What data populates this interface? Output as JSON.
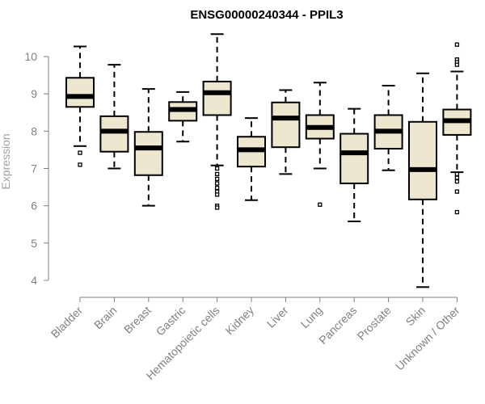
{
  "chart_data": {
    "type": "box",
    "title": "ENSG00000240344 - PPIL3",
    "xlabel": "",
    "ylabel": "Expression",
    "ylim": [
      3.8,
      10.6
    ],
    "yticks": [
      4,
      5,
      6,
      7,
      8,
      9,
      10
    ],
    "grid": false,
    "colors": {
      "box_fill": "#ede7cf",
      "box_stroke": "#000000",
      "axis": "#808080"
    },
    "categories": [
      "Bladder",
      "Brain",
      "Breast",
      "Gastric",
      "Hematopoietic cells",
      "Kidney",
      "Liver",
      "Lung",
      "Pancreas",
      "Prostate",
      "Skin",
      "Unknown / Other"
    ],
    "boxes": [
      {
        "whisker_low": 7.6,
        "q1": 8.65,
        "median": 8.93,
        "q3": 9.43,
        "whisker_high": 10.27,
        "outliers": [
          7.42,
          7.1
        ]
      },
      {
        "whisker_low": 7.0,
        "q1": 7.45,
        "median": 8.0,
        "q3": 8.4,
        "whisker_high": 9.78,
        "outliers": []
      },
      {
        "whisker_low": 6.0,
        "q1": 6.82,
        "median": 7.55,
        "q3": 7.98,
        "whisker_high": 9.13,
        "outliers": []
      },
      {
        "whisker_low": 7.72,
        "q1": 8.28,
        "median": 8.58,
        "q3": 8.78,
        "whisker_high": 9.05,
        "outliers": []
      },
      {
        "whisker_low": 7.08,
        "q1": 8.43,
        "median": 9.03,
        "q3": 9.33,
        "whisker_high": 10.6,
        "outliers": [
          7.0,
          6.85,
          6.72,
          6.6,
          6.48,
          6.38,
          6.3,
          6.0,
          5.95
        ]
      },
      {
        "whisker_low": 6.15,
        "q1": 7.05,
        "median": 7.5,
        "q3": 7.85,
        "whisker_high": 8.35,
        "outliers": []
      },
      {
        "whisker_low": 6.85,
        "q1": 7.57,
        "median": 8.35,
        "q3": 8.77,
        "whisker_high": 9.1,
        "outliers": []
      },
      {
        "whisker_low": 7.0,
        "q1": 7.8,
        "median": 8.1,
        "q3": 8.43,
        "whisker_high": 9.3,
        "outliers": [
          6.03
        ]
      },
      {
        "whisker_low": 5.58,
        "q1": 6.6,
        "median": 7.42,
        "q3": 7.93,
        "whisker_high": 8.6,
        "outliers": []
      },
      {
        "whisker_low": 6.95,
        "q1": 7.53,
        "median": 8.0,
        "q3": 8.43,
        "whisker_high": 9.22,
        "outliers": []
      },
      {
        "whisker_low": 3.82,
        "q1": 6.17,
        "median": 6.97,
        "q3": 8.25,
        "whisker_high": 9.55,
        "outliers": []
      },
      {
        "whisker_low": 6.9,
        "q1": 7.9,
        "median": 8.28,
        "q3": 8.58,
        "whisker_high": 9.6,
        "outliers": [
          10.32,
          9.92,
          9.85,
          9.78,
          6.85,
          6.75,
          6.65,
          6.38,
          5.83
        ]
      }
    ]
  }
}
